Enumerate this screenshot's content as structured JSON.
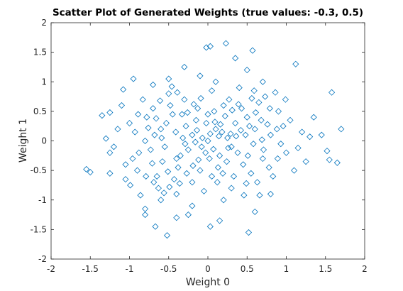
{
  "chart_data": {
    "type": "scatter",
    "title": "Scatter Plot of Generated Weights (true values: -0.3, 0.5)",
    "xlabel": "Weight 0",
    "ylabel": "Weight 1",
    "color": "#0072bd",
    "marker": "diamond",
    "xlim": [
      -2,
      2
    ],
    "ylim": [
      -2,
      2
    ],
    "xticks": [
      -2,
      -1.5,
      -1,
      -0.5,
      0,
      0.5,
      1,
      1.5,
      2
    ],
    "yticks": [
      -2,
      -1.5,
      -1,
      -0.5,
      0,
      0.5,
      1,
      1.5,
      2
    ],
    "grid": false,
    "x": [
      -1.55,
      -1.5,
      -1.35,
      -1.25,
      -1.3,
      -1.25,
      0.23,
      -0.02,
      0.03,
      0.57,
      1.12,
      1.58,
      1.7,
      1.65,
      1.52,
      1.55,
      -0.52,
      0.52,
      -0.8,
      -0.8,
      -0.67,
      0.03,
      -0.95,
      -1.08,
      -0.5,
      1.3,
      1.45,
      0.1,
      -0.2,
      0.3,
      -0.4,
      0.5,
      -0.1,
      0.2,
      -0.6,
      0.7,
      -0.3,
      0,
      0.15,
      -0.25,
      0.35,
      -0.45,
      0.55,
      -0.65,
      0.8,
      -0.8,
      0.05,
      -0.05,
      0.4,
      -0.4,
      0.9,
      -0.9,
      0.25,
      -0.15,
      0.45,
      -0.55,
      0.6,
      -0.7,
      0.12,
      -0.32,
      0.22,
      -0.12,
      0.65,
      -0.2,
      0.3,
      -0.5,
      1,
      -1,
      0.08,
      -0.08,
      0.18,
      -0.28,
      0.38,
      -0.38,
      0.48,
      -0.48,
      0.58,
      -0.58,
      0.68,
      -0.68,
      0.78,
      -0.78,
      0.88,
      -0.88,
      0.02,
      -0.02,
      0.13,
      -0.13,
      0.27,
      -0.27,
      0.33,
      -0.33,
      0.43,
      -0.43,
      0.53,
      -0.53,
      0.63,
      -0.63,
      0.73,
      -0.73,
      0.83,
      -0.83,
      0.93,
      -0.93,
      1.05,
      -1.05,
      1.1,
      -1.1,
      1.2,
      -1.2,
      0.1,
      -0.1,
      0.2,
      -0.2,
      0.5,
      -0.3,
      0.6,
      -0.4,
      0.7,
      -0.7,
      0.8,
      -0.6,
      0.35,
      -0.25,
      0.15,
      0,
      0.05,
      0.24,
      -0.35,
      0.42,
      -0.18,
      0.09,
      -0.09,
      0.31,
      -0.41,
      0.51,
      -0.51,
      0.61,
      -0.61,
      0.71,
      -0.71,
      0.19,
      -0.19,
      0.29,
      -0.29,
      0.39,
      -0.39,
      0.49,
      -0.49,
      0.59,
      -0.59,
      0.69,
      -0.69,
      0.79,
      -0.79,
      0.89,
      -0.89,
      0.99,
      -0.99,
      0.03,
      -0.03,
      0.16,
      -0.16,
      0.26,
      -0.26,
      0.36,
      -0.36,
      0.46,
      -0.46,
      0.56,
      -0.56,
      0.66,
      -0.66,
      0.76,
      -0.76,
      0.86,
      -0.86,
      0.96,
      -0.96,
      1.15,
      -1.15,
      1.25,
      -1.25,
      1.35,
      -1.05,
      0.14,
      -0.14,
      0.07,
      -0.07
    ],
    "y": [
      -0.48,
      -0.53,
      0.43,
      0.48,
      0.04,
      -0.2,
      1.65,
      1.58,
      1.6,
      1.53,
      1.3,
      0.82,
      0.2,
      -0.37,
      -0.17,
      -0.32,
      -1.6,
      -1.55,
      -1.15,
      -1.25,
      -1.45,
      -1.45,
      1.05,
      0.87,
      1.05,
      0.07,
      0.1,
      0.2,
      0.1,
      -0.1,
      -0.3,
      0.4,
      -0.5,
      0.6,
      0.2,
      -0.3,
      0.7,
      0,
      -0.25,
      -0.15,
      0.3,
      0.45,
      -0.55,
      -0.6,
      0.1,
      0,
      0.85,
      -0.85,
      0.9,
      -0.9,
      0.5,
      -0.5,
      0.05,
      0.35,
      -0.4,
      -0.1,
      0.2,
      0.55,
      -0.7,
      0.05,
      0.42,
      -0.32,
      0.65,
      -0.7,
      -0.8,
      0.8,
      -0.2,
      0.3,
      0.5,
      -0.1,
      0.15,
      0.25,
      -0.2,
      -0.45,
      0.1,
      0.6,
      -0.05,
      -0.35,
      0.35,
      0.1,
      -0.45,
      0.4,
      0.2,
      -0.2,
      -0.3,
      0.3,
      -0.45,
      0.55,
      0.7,
      -0.55,
      -0.6,
      0.45,
      0.55,
      -0.65,
      0.25,
      0.3,
      -0.7,
      -0.8,
      0.75,
      -0.15,
      -0.6,
      0.7,
      -0.05,
      0.15,
      0.35,
      -0.4,
      -0.5,
      0.6,
      0.15,
      -0.1,
      1,
      1.1,
      -1,
      -1.1,
      1.2,
      1.25,
      -1.2,
      -1.3,
      1,
      0.95,
      -0.9,
      -1,
      1.4,
      -1.25,
      -1.35,
      0.45,
      -0.6,
      -0.35,
      -0.25,
      0.18,
      0.62,
      0.32,
      0.72,
      0.52,
      0.15,
      -0.25,
      -0.52,
      0.48,
      0.68,
      -0.15,
      -0.38,
      -0.55,
      -0.42,
      0.12,
      -0.05,
      0.62,
      0.82,
      -0.72,
      -0.78,
      0.85,
      0.05,
      0.02,
      -0.7,
      0.55,
      -0.6,
      -0.3,
      0.45,
      0.7,
      -0.75,
      0.12,
      -0.2,
      0.28,
      -0.02,
      -0.12,
      0.48,
      0.08,
      -0.72,
      -0.92,
      0.92,
      0.72,
      -0.88,
      -0.92,
      0.38,
      0.28,
      0.22,
      0.82,
      -0.92,
      0.25,
      -0.3,
      -0.12,
      0.2,
      -0.35,
      -0.55,
      0.4,
      -0.65,
      0.08,
      0.18,
      -0.14,
      0.05
    ]
  }
}
